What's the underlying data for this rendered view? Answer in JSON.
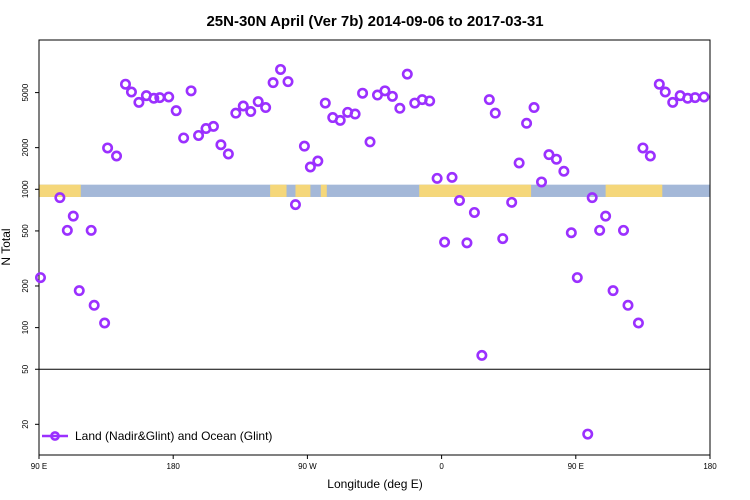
{
  "chart_data": {
    "type": "scatter",
    "title": "25N-30N April (Ver 7b)   2014-09-06 to 2017-03-31",
    "xlabel": "Longitude (deg E)",
    "ylabel": "N Total",
    "yscale": "log",
    "ylim": [
      12,
      12000
    ],
    "x_ticks": [
      {
        "value": 0,
        "label": "90 E"
      },
      {
        "value": 90,
        "label": "180"
      },
      {
        "value": 180,
        "label": "90 W"
      },
      {
        "value": 270,
        "label": "0"
      },
      {
        "value": 360,
        "label": "90 E"
      },
      {
        "value": 450,
        "label": "180"
      }
    ],
    "y_ticks": [
      20,
      50,
      100,
      200,
      500,
      1000,
      2000,
      5000
    ],
    "reference_line": 50,
    "legend": {
      "label": "Land (Nadir&Glint) and Ocean (Glint)",
      "position": "bottom-left"
    },
    "series_color": "#9B30FF",
    "band": {
      "y_low": 880,
      "y_high": 1080,
      "ocean_color": "#A4B8D8",
      "land_color": "#F5D77A",
      "land_segments": [
        [
          0,
          28
        ],
        [
          155,
          166
        ],
        [
          172,
          182
        ],
        [
          189,
          193
        ],
        [
          255,
          330
        ],
        [
          380,
          418
        ]
      ]
    },
    "series": [
      {
        "name": "Land (Nadir&Glint) and Ocean (Glint)",
        "points": [
          [
            1,
            230
          ],
          [
            14,
            870
          ],
          [
            19,
            505
          ],
          [
            23,
            640
          ],
          [
            27,
            185
          ],
          [
            35,
            505
          ],
          [
            37,
            145
          ],
          [
            44,
            108
          ],
          [
            46,
            1990
          ],
          [
            52,
            1740
          ],
          [
            58,
            5750
          ],
          [
            62,
            5050
          ],
          [
            67,
            4250
          ],
          [
            72,
            4750
          ],
          [
            77,
            4550
          ],
          [
            81,
            4600
          ],
          [
            87,
            4650
          ],
          [
            92,
            3700
          ],
          [
            97,
            2350
          ],
          [
            102,
            5150
          ],
          [
            107,
            2450
          ],
          [
            112,
            2750
          ],
          [
            117,
            2850
          ],
          [
            122,
            2100
          ],
          [
            127,
            1800
          ],
          [
            132,
            3550
          ],
          [
            137,
            4000
          ],
          [
            142,
            3650
          ],
          [
            147,
            4300
          ],
          [
            152,
            3900
          ],
          [
            157,
            5900
          ],
          [
            162,
            7350
          ],
          [
            167,
            6000
          ],
          [
            172,
            775
          ],
          [
            178,
            2050
          ],
          [
            182,
            1450
          ],
          [
            187,
            1600
          ],
          [
            192,
            4200
          ],
          [
            197,
            3300
          ],
          [
            202,
            3150
          ],
          [
            207,
            3600
          ],
          [
            212,
            3500
          ],
          [
            217,
            4950
          ],
          [
            222,
            2200
          ],
          [
            227,
            4800
          ],
          [
            232,
            5150
          ],
          [
            237,
            4700
          ],
          [
            242,
            3850
          ],
          [
            247,
            6800
          ],
          [
            252,
            4200
          ],
          [
            257,
            4450
          ],
          [
            262,
            4350
          ],
          [
            267,
            1200
          ],
          [
            272,
            415
          ],
          [
            277,
            1220
          ],
          [
            282,
            830
          ],
          [
            287,
            410
          ],
          [
            292,
            680
          ],
          [
            297,
            63
          ],
          [
            302,
            4450
          ],
          [
            306,
            3550
          ],
          [
            311,
            440
          ],
          [
            317,
            805
          ],
          [
            322,
            1550
          ],
          [
            327,
            3000
          ],
          [
            332,
            3900
          ],
          [
            337,
            1130
          ],
          [
            342,
            1780
          ],
          [
            347,
            1650
          ],
          [
            352,
            1350
          ],
          [
            357,
            485
          ],
          [
            361,
            230
          ],
          [
            368,
            17
          ],
          [
            371,
            870
          ],
          [
            376,
            505
          ],
          [
            380,
            640
          ],
          [
            385,
            185
          ],
          [
            392,
            505
          ],
          [
            395,
            145
          ],
          [
            402,
            108
          ],
          [
            405,
            1990
          ],
          [
            410,
            1740
          ],
          [
            416,
            5750
          ],
          [
            420,
            5050
          ],
          [
            425,
            4250
          ],
          [
            430,
            4750
          ],
          [
            435,
            4550
          ],
          [
            440,
            4600
          ],
          [
            446,
            4650
          ]
        ]
      }
    ]
  }
}
